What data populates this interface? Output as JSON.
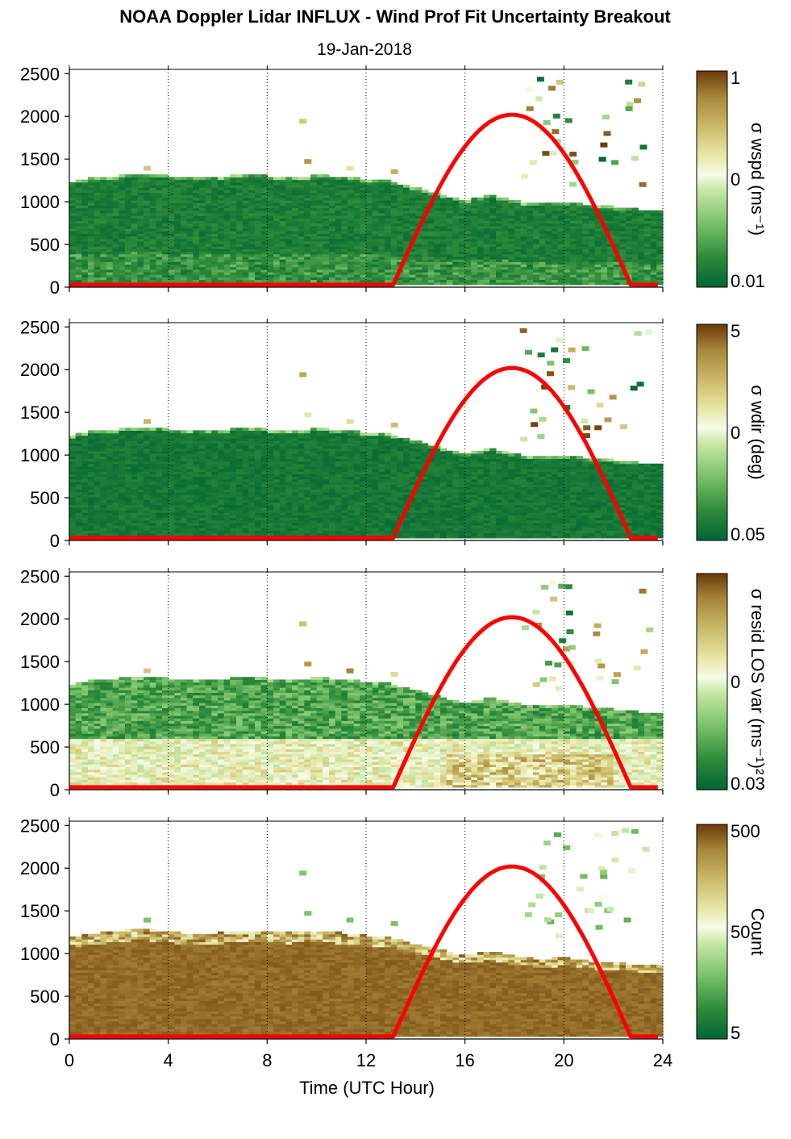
{
  "title": "NOAA Doppler Lidar INFLUX - Wind Prof Fit Uncertainty Breakout",
  "subtitle": "19-Jan-2018",
  "xlabel": "Time (UTC Hour)",
  "colors": {
    "curve": "#ff0000",
    "cmap": [
      "#006633",
      "#2e8b3a",
      "#7cc36a",
      "#c8e8a8",
      "#f6fbe6",
      "#e6e3a0",
      "#c8b866",
      "#a8873a",
      "#6b3a0a"
    ]
  },
  "chart_data": [
    {
      "type": "heatmap",
      "name": "panel-wspd",
      "ylim": [
        0,
        2550
      ],
      "yticks": [
        0,
        500,
        1000,
        1500,
        2000,
        2500
      ],
      "xlim": [
        0,
        24
      ],
      "xticks": [
        0,
        4,
        8,
        12,
        16,
        20,
        24
      ],
      "colorbar": {
        "label": "σ wspd (ms⁻¹)",
        "ticks": [
          "1",
          "0",
          "0.01"
        ]
      },
      "top_height_m": [
        [
          0,
          1220
        ],
        [
          1,
          1270
        ],
        [
          2,
          1290
        ],
        [
          3,
          1320
        ],
        [
          4,
          1290
        ],
        [
          5,
          1260
        ],
        [
          6,
          1280
        ],
        [
          7,
          1300
        ],
        [
          8,
          1290
        ],
        [
          9,
          1270
        ],
        [
          10,
          1300
        ],
        [
          11,
          1280
        ],
        [
          12,
          1250
        ],
        [
          13,
          1230
        ],
        [
          14,
          1150
        ],
        [
          15,
          1080
        ],
        [
          16,
          1000
        ],
        [
          17,
          1070
        ],
        [
          18,
          1000
        ],
        [
          19,
          960
        ],
        [
          20,
          980
        ],
        [
          21,
          950
        ],
        [
          22,
          930
        ],
        [
          23,
          900
        ],
        [
          23.8,
          900
        ]
      ],
      "sun_curve": {
        "rise": 13.1,
        "set": 22.7,
        "peak_hour": 17.9,
        "peak_height": 2020,
        "base_height": 30
      }
    },
    {
      "type": "heatmap",
      "name": "panel-wdir",
      "ylim": [
        0,
        2550
      ],
      "yticks": [
        0,
        500,
        1000,
        1500,
        2000,
        2500
      ],
      "xlim": [
        0,
        24
      ],
      "xticks": [
        0,
        4,
        8,
        12,
        16,
        20,
        24
      ],
      "colorbar": {
        "label": "σ wdir (deg)",
        "ticks": [
          "5",
          "0",
          "0.05"
        ]
      },
      "top_height_m": [
        [
          0,
          1220
        ],
        [
          1,
          1270
        ],
        [
          2,
          1290
        ],
        [
          3,
          1320
        ],
        [
          4,
          1290
        ],
        [
          5,
          1260
        ],
        [
          6,
          1280
        ],
        [
          7,
          1300
        ],
        [
          8,
          1290
        ],
        [
          9,
          1270
        ],
        [
          10,
          1300
        ],
        [
          11,
          1280
        ],
        [
          12,
          1250
        ],
        [
          13,
          1230
        ],
        [
          14,
          1150
        ],
        [
          15,
          1080
        ],
        [
          16,
          1000
        ],
        [
          17,
          1070
        ],
        [
          18,
          1000
        ],
        [
          19,
          960
        ],
        [
          20,
          980
        ],
        [
          21,
          950
        ],
        [
          22,
          930
        ],
        [
          23,
          900
        ],
        [
          23.8,
          900
        ]
      ],
      "sun_curve": {
        "rise": 13.1,
        "set": 22.7,
        "peak_hour": 17.9,
        "peak_height": 2020,
        "base_height": 30
      }
    },
    {
      "type": "heatmap",
      "name": "panel-resid",
      "ylim": [
        0,
        2550
      ],
      "yticks": [
        0,
        500,
        1000,
        1500,
        2000,
        2500
      ],
      "xlim": [
        0,
        24
      ],
      "xticks": [
        0,
        4,
        8,
        12,
        16,
        20,
        24
      ],
      "colorbar": {
        "label": "σ resid LOS var (ms⁻¹)²",
        "ticks": [
          "0",
          "0.03"
        ]
      },
      "top_height_m": [
        [
          0,
          1220
        ],
        [
          1,
          1270
        ],
        [
          2,
          1290
        ],
        [
          3,
          1320
        ],
        [
          4,
          1290
        ],
        [
          5,
          1260
        ],
        [
          6,
          1280
        ],
        [
          7,
          1300
        ],
        [
          8,
          1290
        ],
        [
          9,
          1270
        ],
        [
          10,
          1300
        ],
        [
          11,
          1280
        ],
        [
          12,
          1250
        ],
        [
          13,
          1230
        ],
        [
          14,
          1150
        ],
        [
          15,
          1080
        ],
        [
          16,
          1000
        ],
        [
          17,
          1070
        ],
        [
          18,
          1000
        ],
        [
          19,
          960
        ],
        [
          20,
          980
        ],
        [
          21,
          950
        ],
        [
          22,
          930
        ],
        [
          23,
          900
        ],
        [
          23.8,
          900
        ]
      ],
      "sun_curve": {
        "rise": 13.1,
        "set": 22.7,
        "peak_hour": 17.9,
        "peak_height": 2020,
        "base_height": 30
      }
    },
    {
      "type": "heatmap",
      "name": "panel-count",
      "ylim": [
        0,
        2550
      ],
      "yticks": [
        0,
        500,
        1000,
        1500,
        2000,
        2500
      ],
      "xlim": [
        0,
        24
      ],
      "xticks": [
        0,
        4,
        8,
        12,
        16,
        20,
        24
      ],
      "colorbar": {
        "label": "Count",
        "ticks": [
          "500",
          "50",
          "5"
        ]
      },
      "top_height_m": [
        [
          0,
          1180
        ],
        [
          1,
          1220
        ],
        [
          2,
          1250
        ],
        [
          3,
          1280
        ],
        [
          4,
          1240
        ],
        [
          5,
          1220
        ],
        [
          6,
          1230
        ],
        [
          7,
          1250
        ],
        [
          8,
          1240
        ],
        [
          9,
          1230
        ],
        [
          10,
          1240
        ],
        [
          11,
          1230
        ],
        [
          12,
          1200
        ],
        [
          13,
          1180
        ],
        [
          14,
          1100
        ],
        [
          15,
          1030
        ],
        [
          16,
          960
        ],
        [
          17,
          1010
        ],
        [
          18,
          960
        ],
        [
          19,
          920
        ],
        [
          20,
          940
        ],
        [
          21,
          900
        ],
        [
          22,
          880
        ],
        [
          23,
          860
        ],
        [
          23.8,
          860
        ]
      ],
      "sun_curve": {
        "rise": 13.1,
        "set": 22.7,
        "peak_hour": 17.9,
        "peak_height": 2020,
        "base_height": 30
      }
    }
  ]
}
